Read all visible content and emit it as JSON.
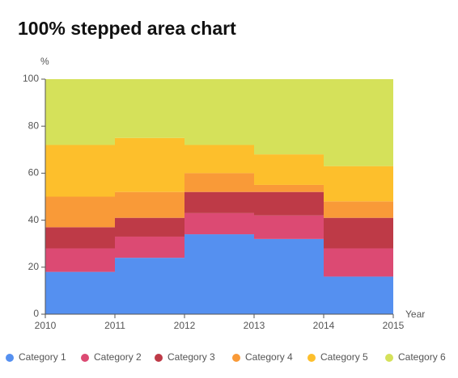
{
  "chart_data": {
    "type": "stepped-area",
    "title": "100% stepped area chart",
    "y_label": "%",
    "x_label": "Year",
    "x": [
      2010,
      2011,
      2012,
      2013,
      2014
    ],
    "xlim": [
      2010,
      2015
    ],
    "xticks": [
      2010,
      2011,
      2012,
      2013,
      2014,
      2015
    ],
    "ylim": [
      0,
      100
    ],
    "yticks": [
      0,
      20,
      40,
      60,
      80,
      100
    ],
    "grid": false,
    "legend": "bottom",
    "series": [
      {
        "name": "Category 1",
        "color": "#5590f0",
        "values": [
          18,
          24,
          34,
          32,
          16
        ]
      },
      {
        "name": "Category 2",
        "color": "#dc4a73",
        "values": [
          10,
          9,
          9,
          10,
          12
        ]
      },
      {
        "name": "Category 3",
        "color": "#be3a47",
        "values": [
          9,
          8,
          9,
          10,
          13
        ]
      },
      {
        "name": "Category 4",
        "color": "#f99a38",
        "values": [
          13,
          11,
          8,
          3,
          7
        ]
      },
      {
        "name": "Category 5",
        "color": "#fdbf2c",
        "values": [
          22,
          23,
          12,
          13,
          15
        ]
      },
      {
        "name": "Category 6",
        "color": "#d5e15a",
        "values": [
          28,
          25,
          28,
          32,
          37
        ]
      }
    ]
  }
}
